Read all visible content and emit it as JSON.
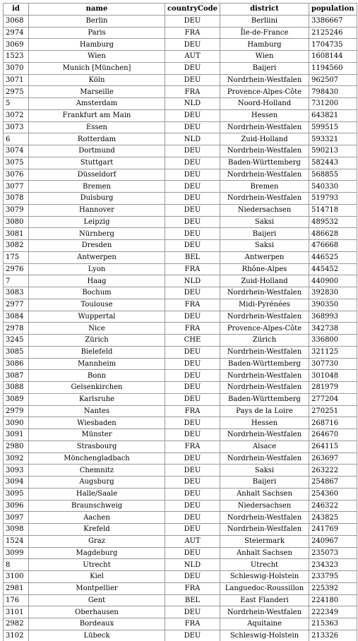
{
  "table": {
    "columns": [
      "id",
      "name",
      "countryCode",
      "district",
      "population"
    ],
    "rows": [
      [
        "3068",
        "Berlin",
        "DEU",
        "Berliini",
        "3386667"
      ],
      [
        "2974",
        "Paris",
        "FRA",
        "Île-de-France",
        "2125246"
      ],
      [
        "3069",
        "Hamburg",
        "DEU",
        "Hamburg",
        "1704735"
      ],
      [
        "1523",
        "Wien",
        "AUT",
        "Wien",
        "1608144"
      ],
      [
        "3070",
        "Munich [München]",
        "DEU",
        "Baijeri",
        "1194560"
      ],
      [
        "3071",
        "Köln",
        "DEU",
        "Nordrhein-Westfalen",
        "962507"
      ],
      [
        "2975",
        "Marseille",
        "FRA",
        "Provence-Alpes-Côte",
        "798430"
      ],
      [
        "5",
        "Amsterdam",
        "NLD",
        "Noord-Holland",
        "731200"
      ],
      [
        "3072",
        "Frankfurt am Main",
        "DEU",
        "Hessen",
        "643821"
      ],
      [
        "3073",
        "Essen",
        "DEU",
        "Nordrhein-Westfalen",
        "599515"
      ],
      [
        "6",
        "Rotterdam",
        "NLD",
        "Zuid-Holland",
        "593321"
      ],
      [
        "3074",
        "Dortmund",
        "DEU",
        "Nordrhein-Westfalen",
        "590213"
      ],
      [
        "3075",
        "Stuttgart",
        "DEU",
        "Baden-Württemberg",
        "582443"
      ],
      [
        "3076",
        "Düsseldorf",
        "DEU",
        "Nordrhein-Westfalen",
        "568855"
      ],
      [
        "3077",
        "Bremen",
        "DEU",
        "Bremen",
        "540330"
      ],
      [
        "3078",
        "Duisburg",
        "DEU",
        "Nordrhein-Westfalen",
        "519793"
      ],
      [
        "3079",
        "Hannover",
        "DEU",
        "Niedersachsen",
        "514718"
      ],
      [
        "3080",
        "Leipzig",
        "DEU",
        "Saksi",
        "489532"
      ],
      [
        "3081",
        "Nürnberg",
        "DEU",
        "Baijeri",
        "486628"
      ],
      [
        "3082",
        "Dresden",
        "DEU",
        "Saksi",
        "476668"
      ],
      [
        "175",
        "Antwerpen",
        "BEL",
        "Antwerpen",
        "446525"
      ],
      [
        "2976",
        "Lyon",
        "FRA",
        "Rhône-Alpes",
        "445452"
      ],
      [
        "7",
        "Haag",
        "NLD",
        "Zuid-Holland",
        "440900"
      ],
      [
        "3083",
        "Bochum",
        "DEU",
        "Nordrhein-Westfalen",
        "392830"
      ],
      [
        "2977",
        "Toulouse",
        "FRA",
        "Midi-Pyrénées",
        "390350"
      ],
      [
        "3084",
        "Wuppertal",
        "DEU",
        "Nordrhein-Westfalen",
        "368993"
      ],
      [
        "2978",
        "Nice",
        "FRA",
        "Provence-Alpes-Côte",
        "342738"
      ],
      [
        "3245",
        "Zürich",
        "CHE",
        "Zürich",
        "336800"
      ],
      [
        "3085",
        "Bielefeld",
        "DEU",
        "Nordrhein-Westfalen",
        "321125"
      ],
      [
        "3086",
        "Mannheim",
        "DEU",
        "Baden-Württemberg",
        "307730"
      ],
      [
        "3087",
        "Bonn",
        "DEU",
        "Nordrhein-Westfalen",
        "301048"
      ],
      [
        "3088",
        "Gelsenkirchen",
        "DEU",
        "Nordrhein-Westfalen",
        "281979"
      ],
      [
        "3089",
        "Karlsruhe",
        "DEU",
        "Baden-Württemberg",
        "277204"
      ],
      [
        "2979",
        "Nantes",
        "FRA",
        "Pays de la Loire",
        "270251"
      ],
      [
        "3090",
        "Wiesbaden",
        "DEU",
        "Hessen",
        "268716"
      ],
      [
        "3091",
        "Münster",
        "DEU",
        "Nordrhein-Westfalen",
        "264670"
      ],
      [
        "2980",
        "Strasbourg",
        "FRA",
        "Alsace",
        "264115"
      ],
      [
        "3092",
        "Mönchengladbach",
        "DEU",
        "Nordrhein-Westfalen",
        "263697"
      ],
      [
        "3093",
        "Chemnitz",
        "DEU",
        "Saksi",
        "263222"
      ],
      [
        "3094",
        "Augsburg",
        "DEU",
        "Baijeri",
        "254867"
      ],
      [
        "3095",
        "Halle/Saale",
        "DEU",
        "Anhalt Sachsen",
        "254360"
      ],
      [
        "3096",
        "Braunschweig",
        "DEU",
        "Niedersachsen",
        "246322"
      ],
      [
        "3097",
        "Aachen",
        "DEU",
        "Nordrhein-Westfalen",
        "243825"
      ],
      [
        "3098",
        "Krefeld",
        "DEU",
        "Nordrhein-Westfalen",
        "241769"
      ],
      [
        "1524",
        "Graz",
        "AUT",
        "Steiermark",
        "240967"
      ],
      [
        "3099",
        "Magdeburg",
        "DEU",
        "Anhalt Sachsen",
        "235073"
      ],
      [
        "8",
        "Utrecht",
        "NLD",
        "Utrecht",
        "234323"
      ],
      [
        "3100",
        "Kiel",
        "DEU",
        "Schleswig-Holstein",
        "233795"
      ],
      [
        "2981",
        "Montpellier",
        "FRA",
        "Languedoc-Roussillon",
        "225392"
      ],
      [
        "176",
        "Gent",
        "BEL",
        "East Flanderi",
        "224180"
      ],
      [
        "3101",
        "Oberhausen",
        "DEU",
        "Nordrhein-Westfalen",
        "222349"
      ],
      [
        "2982",
        "Bordeaux",
        "FRA",
        "Aquitaine",
        "215363"
      ],
      [
        "3102",
        "Lübeck",
        "DEU",
        "Schleswig-Holstein",
        "213326"
      ]
    ]
  }
}
